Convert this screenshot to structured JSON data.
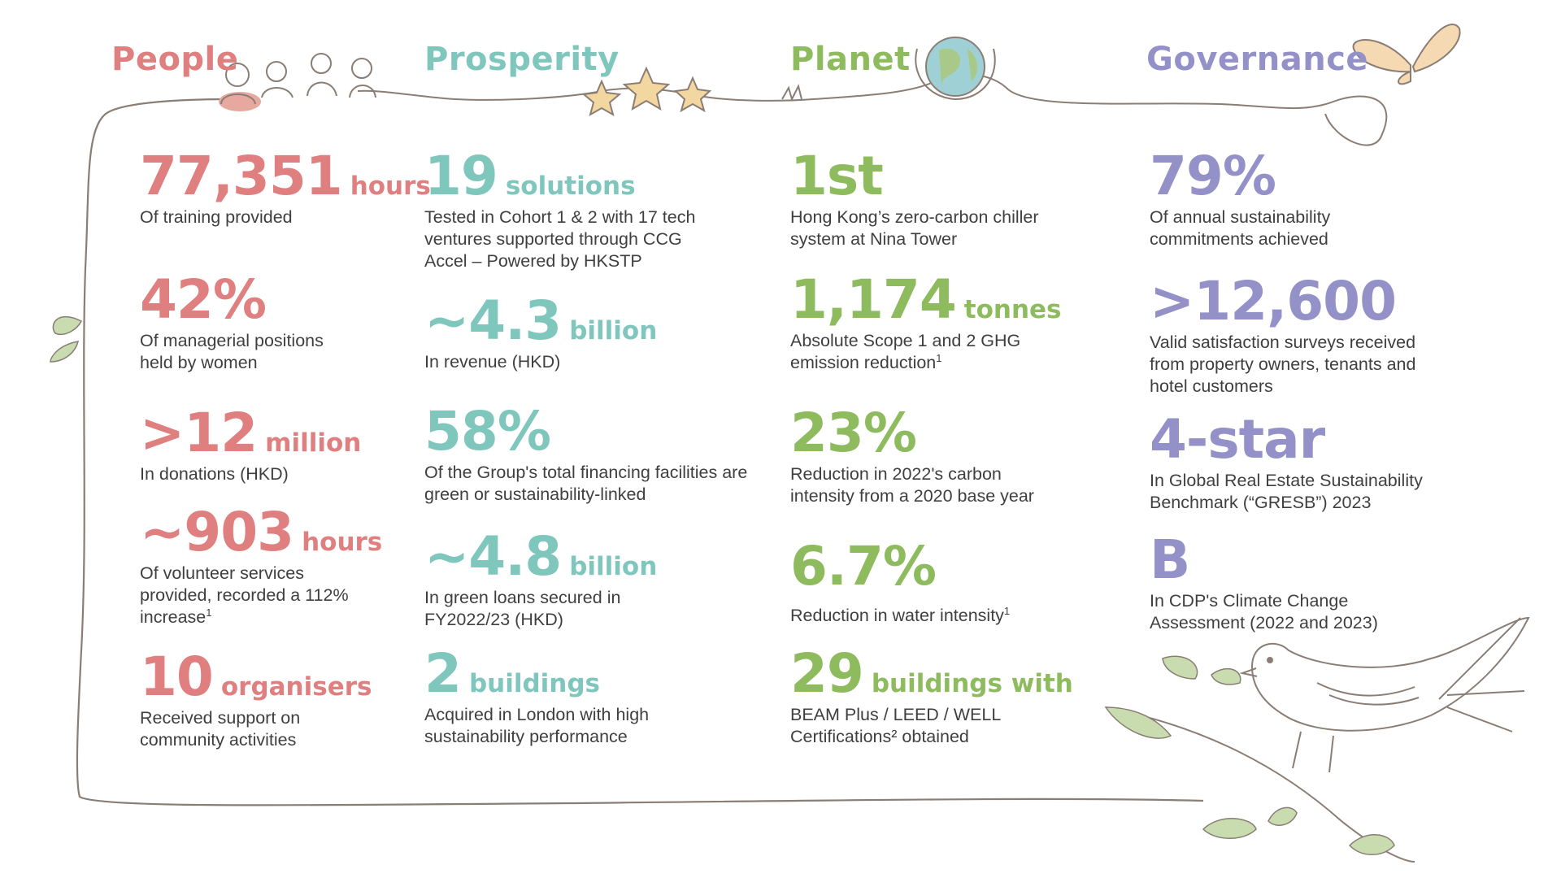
{
  "colors": {
    "people": "#E07F7F",
    "prosperity": "#7FC6BD",
    "planet": "#8DBB5E",
    "governance": "#9391C8",
    "text": "#3f3f3f",
    "line": "#8a7d74"
  },
  "columns": [
    {
      "key": "people",
      "heading": "People",
      "stats": [
        {
          "value": "77,351",
          "unit": "hours",
          "description": "Of training provided",
          "note": ""
        },
        {
          "value": "42%",
          "unit": "",
          "description": "Of managerial positions held by women",
          "note": ""
        },
        {
          "value": ">12",
          "unit": "million",
          "description": "In donations (HKD)",
          "note": ""
        },
        {
          "value": "~903",
          "unit": "hours",
          "description": "Of volunteer services provided, recorded a 112% increase",
          "note": "1"
        },
        {
          "value": "10",
          "unit": "organisers",
          "description": "Received support on community activities",
          "note": ""
        }
      ]
    },
    {
      "key": "prosperity",
      "heading": "Prosperity",
      "stats": [
        {
          "value": "19",
          "unit": "solutions",
          "description": "Tested in Cohort 1 & 2 with 17 tech ventures supported through CCG Accel – Powered by HKSTP",
          "note": ""
        },
        {
          "value": "~4.3",
          "unit": "billion",
          "description": "In revenue (HKD)",
          "note": ""
        },
        {
          "value": "58%",
          "unit": "",
          "description": "Of the Group's total financing facilities are green or sustainability-linked",
          "note": ""
        },
        {
          "value": "~4.8",
          "unit": "billion",
          "description": "In green loans secured in FY2022/23 (HKD)",
          "note": ""
        },
        {
          "value": "2",
          "unit": "buildings",
          "description": "Acquired in London with high sustainability performance",
          "note": ""
        }
      ]
    },
    {
      "key": "planet",
      "heading": "Planet",
      "stats": [
        {
          "value": "1st",
          "unit": "",
          "description": "Hong Kong’s zero-carbon chiller system at Nina Tower",
          "note": ""
        },
        {
          "value": "1,174",
          "unit": "tonnes",
          "description": "Absolute Scope 1 and 2 GHG emission reduction",
          "note": "1"
        },
        {
          "value": "23%",
          "unit": "",
          "description": "Reduction in 2022's carbon intensity from a 2020 base year",
          "note": ""
        },
        {
          "value": "6.7%",
          "unit": "",
          "description": "Reduction in water intensity",
          "note": "1"
        },
        {
          "value": "29",
          "unit": "buildings with",
          "description": "BEAM Plus / LEED / WELL Certifications² obtained",
          "note": ""
        }
      ]
    },
    {
      "key": "governance",
      "heading": "Governance",
      "stats": [
        {
          "value": "79%",
          "unit": "",
          "description": "Of annual sustainability commitments achieved",
          "note": ""
        },
        {
          "value": ">12,600",
          "unit": "",
          "description": "Valid satisfaction surveys received from property owners, tenants and hotel customers",
          "note": ""
        },
        {
          "value": "4-star",
          "unit": "",
          "description": "In Global Real Estate Sustainability Benchmark (“GRESB”) 2023",
          "note": ""
        },
        {
          "value": "B",
          "unit": "",
          "description": "In CDP's Climate Change Assessment (2022 and 2023)",
          "note": ""
        }
      ]
    }
  ],
  "illustrations": [
    "people-group-icon",
    "stars-icon",
    "globe-hands-icon",
    "butterfly-icon",
    "bird-on-branch-icon",
    "leaf-icon"
  ]
}
